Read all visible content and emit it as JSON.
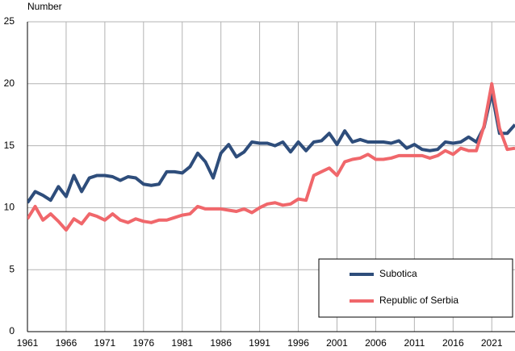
{
  "chart_data": {
    "type": "line",
    "y_label": "Number",
    "x": [
      1961,
      1962,
      1963,
      1964,
      1965,
      1966,
      1967,
      1968,
      1969,
      1970,
      1971,
      1972,
      1973,
      1974,
      1975,
      1976,
      1977,
      1978,
      1979,
      1980,
      1981,
      1982,
      1983,
      1984,
      1985,
      1986,
      1987,
      1988,
      1989,
      1990,
      1991,
      1992,
      1993,
      1994,
      1995,
      1996,
      1997,
      1998,
      1999,
      2000,
      2001,
      2002,
      2003,
      2004,
      2005,
      2006,
      2007,
      2008,
      2009,
      2010,
      2011,
      2012,
      2013,
      2014,
      2015,
      2016,
      2017,
      2018,
      2019,
      2020,
      2021,
      2022,
      2023,
      2024
    ],
    "series": [
      {
        "name": "Subotica",
        "color": "#2e4d7b",
        "values": [
          10.4,
          11.3,
          11.0,
          10.6,
          11.7,
          10.9,
          12.6,
          11.3,
          12.4,
          12.6,
          12.6,
          12.5,
          12.2,
          12.5,
          12.4,
          11.9,
          11.8,
          11.9,
          12.9,
          12.9,
          12.8,
          13.3,
          14.4,
          13.7,
          12.4,
          14.4,
          15.1,
          14.1,
          14.5,
          15.3,
          15.2,
          15.2,
          15.0,
          15.3,
          14.5,
          15.3,
          14.6,
          15.3,
          15.4,
          16.0,
          15.1,
          16.2,
          15.3,
          15.5,
          15.3,
          15.3,
          15.3,
          15.2,
          15.4,
          14.8,
          15.1,
          14.7,
          14.6,
          14.7,
          15.3,
          15.2,
          15.3,
          15.7,
          15.3,
          16.5,
          19.3,
          16.0,
          16.0,
          16.7
        ]
      },
      {
        "name": "Republic of Serbia",
        "color": "#f0676b",
        "values": [
          9.1,
          10.1,
          9.0,
          9.5,
          8.9,
          8.2,
          9.1,
          8.7,
          9.5,
          9.3,
          9.0,
          9.5,
          9.0,
          8.8,
          9.1,
          8.9,
          8.8,
          9.0,
          9.0,
          9.2,
          9.4,
          9.5,
          10.1,
          9.9,
          9.9,
          9.9,
          9.8,
          9.7,
          9.9,
          9.6,
          10.0,
          10.3,
          10.4,
          10.2,
          10.3,
          10.7,
          10.6,
          12.6,
          12.9,
          13.2,
          12.6,
          13.7,
          13.9,
          14.0,
          14.3,
          13.9,
          13.9,
          14.0,
          14.2,
          14.2,
          14.2,
          14.2,
          14.0,
          14.2,
          14.6,
          14.3,
          14.8,
          14.6,
          14.6,
          16.6,
          20.0,
          16.4,
          14.7,
          14.8
        ]
      }
    ],
    "xlim": [
      1961,
      2024
    ],
    "xticks": [
      1961,
      1966,
      1971,
      1976,
      1981,
      1986,
      1991,
      1996,
      2001,
      2006,
      2011,
      2016,
      2021
    ],
    "ylim": [
      0,
      25
    ],
    "yticks": [
      0,
      5,
      10,
      15,
      20,
      25
    ],
    "grid": true
  }
}
